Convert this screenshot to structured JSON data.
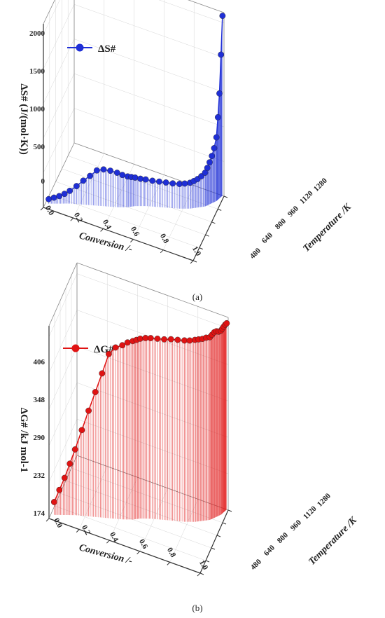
{
  "chart_data": [
    {
      "type": "line",
      "panel_label": "(a)",
      "series": [
        {
          "name": "ΔS#",
          "color": "#1f2fd6"
        }
      ],
      "ylabel": "ΔS# (J/(mol·K))",
      "xlabel": "Conversion /-",
      "zlabel": "Temperature /K",
      "y_ticks": [
        "0",
        "500",
        "1000",
        "1500",
        "2000"
      ],
      "x_ticks": [
        "0.0",
        "0.2",
        "0.4",
        "0.6",
        "0.8",
        "1.0"
      ],
      "z_ticks": [
        "480",
        "640",
        "800",
        "960",
        "1120",
        "1280"
      ],
      "ylim": [
        -300,
        2150
      ],
      "conversion": [
        0.02,
        0.05,
        0.08,
        0.11,
        0.14,
        0.18,
        0.22,
        0.26,
        0.3,
        0.34,
        0.38,
        0.42,
        0.45,
        0.48,
        0.5,
        0.52,
        0.55,
        0.58,
        0.62,
        0.66,
        0.7,
        0.74,
        0.78,
        0.81,
        0.84,
        0.86,
        0.88,
        0.9,
        0.92,
        0.93,
        0.94,
        0.95,
        0.96,
        0.97,
        0.975,
        0.98,
        0.985,
        0.99
      ],
      "temperature": [
        540,
        560,
        580,
        600,
        620,
        640,
        660,
        680,
        700,
        720,
        740,
        760,
        780,
        800,
        820,
        840,
        860,
        880,
        900,
        920,
        940,
        960,
        980,
        1000,
        1020,
        1040,
        1060,
        1080,
        1100,
        1120,
        1140,
        1160,
        1180,
        1200,
        1220,
        1240,
        1260,
        1280
      ],
      "values": [
        -240,
        -220,
        -200,
        -170,
        -130,
        -60,
        20,
        90,
        170,
        190,
        180,
        160,
        130,
        110,
        95,
        80,
        65,
        55,
        45,
        40,
        35,
        30,
        30,
        35,
        45,
        60,
        80,
        110,
        150,
        200,
        260,
        330,
        420,
        550,
        800,
        1100,
        1600,
        2100
      ]
    },
    {
      "type": "line",
      "panel_label": "(b)",
      "series": [
        {
          "name": "ΔG#",
          "color": "#e01313"
        }
      ],
      "ylabel": "ΔG# /kJ mol-1",
      "xlabel": "Conversion /-",
      "zlabel": "Temperature /K",
      "y_ticks": [
        "174",
        "232",
        "290",
        "348",
        "406"
      ],
      "x_ticks": [
        "0.0",
        "0.2",
        "0.4",
        "0.6",
        "0.8",
        "1.0"
      ],
      "z_ticks": [
        "480",
        "640",
        "800",
        "960",
        "1120",
        "1280"
      ],
      "ylim": [
        170,
        440
      ],
      "conversion": [
        0.02,
        0.05,
        0.08,
        0.11,
        0.14,
        0.18,
        0.22,
        0.26,
        0.3,
        0.34,
        0.38,
        0.42,
        0.45,
        0.48,
        0.5,
        0.52,
        0.55,
        0.58,
        0.62,
        0.66,
        0.7,
        0.74,
        0.78,
        0.81,
        0.84,
        0.86,
        0.88,
        0.9,
        0.92,
        0.93,
        0.94,
        0.95,
        0.96,
        0.97,
        0.975,
        0.98,
        0.985,
        0.99
      ],
      "temperature": [
        540,
        560,
        580,
        600,
        620,
        640,
        660,
        680,
        700,
        720,
        740,
        760,
        780,
        800,
        820,
        840,
        860,
        880,
        900,
        920,
        940,
        960,
        980,
        1000,
        1020,
        1040,
        1060,
        1080,
        1100,
        1120,
        1140,
        1160,
        1180,
        1200,
        1220,
        1240,
        1260,
        1280
      ],
      "values": [
        188,
        205,
        222,
        242,
        262,
        290,
        318,
        345,
        372,
        400,
        410,
        414,
        418,
        420,
        421,
        422,
        423,
        423,
        423,
        423,
        424,
        424,
        424,
        424,
        425,
        425,
        425,
        426,
        426,
        428,
        430,
        430,
        428,
        428,
        429,
        430,
        431,
        431
      ]
    }
  ]
}
